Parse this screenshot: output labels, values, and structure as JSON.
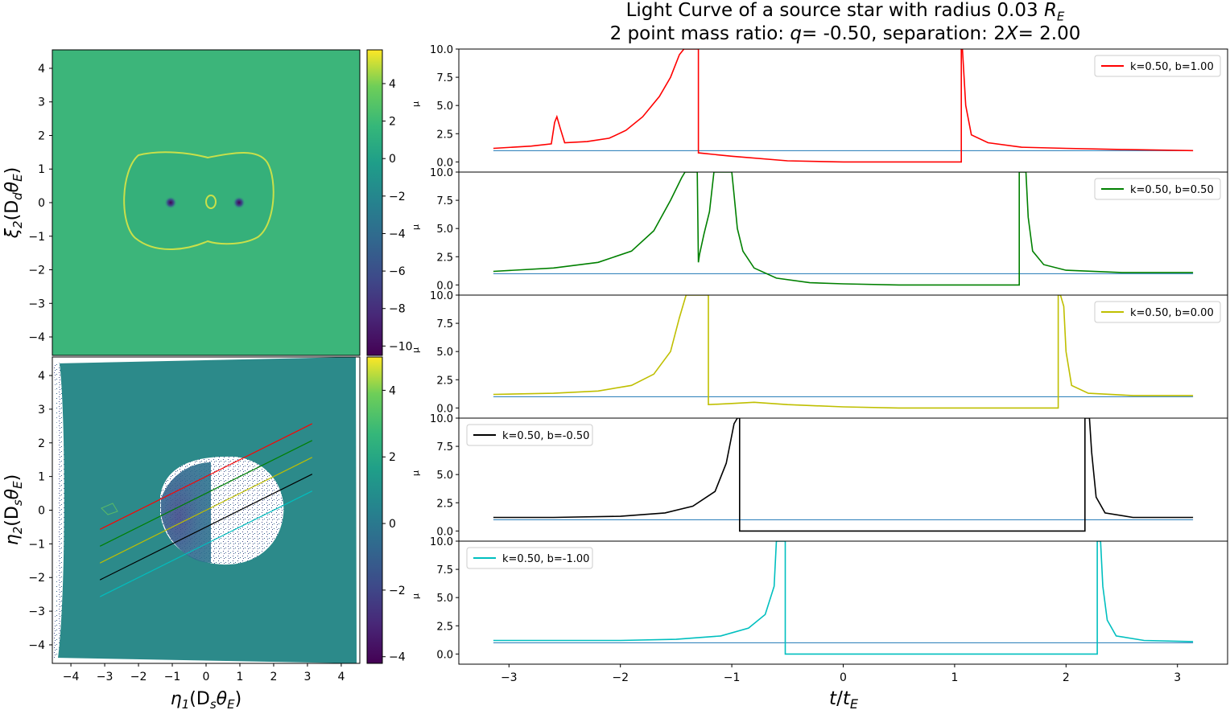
{
  "title": {
    "line1_text": "Light Curve of a source star with radius 0.03",
    "line1_symbol": "R",
    "line1_sub": "E",
    "line2_prefix": "2 point mass ratio: ",
    "q_symbol": "q",
    "q_value": "= -0.50",
    "sep_label": ", separation: 2",
    "x_symbol": "X",
    "x_value": "= 2.00"
  },
  "left_panels": {
    "top": {
      "ylabel_symbol": "ξ",
      "ylabel_sub": "2",
      "ylabel_rest": "(D",
      "ylabel_sub2": "d",
      "ylabel_tail": "θ",
      "ylabel_sub3": "E",
      "yticks": [
        "4",
        "3",
        "2",
        "1",
        "0",
        "−1",
        "−2",
        "−3",
        "−4"
      ],
      "colorbar_ticks": [
        "4",
        "2",
        "0",
        "−2",
        "−4",
        "−6",
        "−8",
        "−10"
      ],
      "colorbar_range": [
        -10.5,
        5.8
      ]
    },
    "bottom": {
      "ylabel_symbol": "η",
      "ylabel_sub": "2",
      "ylabel_rest": "(D",
      "ylabel_sub2": "s",
      "ylabel_tail": "θ",
      "ylabel_sub3": "E",
      "xlabel_symbol": "η",
      "xlabel_sub": "1",
      "xlabel_rest": "(D",
      "xlabel_sub2": "s",
      "xlabel_tail": "θ",
      "xlabel_sub3": "E",
      "yticks": [
        "4",
        "3",
        "2",
        "1",
        "0",
        "−1",
        "−2",
        "−3",
        "−4"
      ],
      "xticks": [
        "−4",
        "−3",
        "−2",
        "−1",
        "0",
        "1",
        "2",
        "3",
        "4"
      ],
      "colorbar_ticks": [
        "4",
        "2",
        "0",
        "−2",
        "−4"
      ],
      "colorbar_range": [
        -4.2,
        5.0
      ]
    },
    "track_lines": [
      {
        "color": "#ff0000",
        "b": 1.0
      },
      {
        "color": "#008000",
        "b": 0.5
      },
      {
        "color": "#bfbf00",
        "b": 0.0
      },
      {
        "color": "#000000",
        "b": -0.5
      },
      {
        "color": "#00bfbf",
        "b": -1.0
      }
    ],
    "track_slope": 0.5,
    "track_x_range": [
      -3.14,
      3.14
    ]
  },
  "right_panels": {
    "xlabel_main": "t",
    "xlabel_sub": "E",
    "xticks": [
      "−3",
      "−2",
      "−1",
      "0",
      "1",
      "2",
      "3"
    ],
    "ylabel": "μ",
    "yticks": [
      "10.0",
      "7.5",
      "5.0",
      "2.5",
      "0.0"
    ],
    "xlim": [
      -3.45,
      3.45
    ],
    "ylim": [
      -0.9,
      10.0
    ],
    "baseline_color": "#1f77b4"
  },
  "chart_data": [
    {
      "type": "line",
      "title": "Light Curve of a source star with radius 0.03 R_E",
      "xlabel": "t/t_E",
      "ylabel": "μ",
      "ylim": [
        -0.9,
        10.0
      ],
      "xlim": [
        -3.45,
        3.45
      ],
      "legend_position": "top-right",
      "series": [
        {
          "name": "k=0.50, b=1.00",
          "color": "#ff0000",
          "x": [
            -3.14,
            -2.8,
            -2.62,
            -2.59,
            -2.57,
            -2.54,
            -2.5,
            -2.3,
            -2.1,
            -1.95,
            -1.8,
            -1.65,
            -1.55,
            -1.47,
            -1.43,
            -1.4,
            -1.3,
            -1.3,
            -1.0,
            -0.5,
            0.0,
            0.5,
            1.06,
            1.06,
            1.07,
            1.1,
            1.15,
            1.3,
            1.6,
            2.0,
            2.5,
            3.14
          ],
          "y": [
            1.2,
            1.4,
            1.6,
            3.5,
            4.0,
            3.0,
            1.7,
            1.8,
            2.1,
            2.8,
            4.0,
            5.8,
            7.5,
            9.5,
            10.0,
            10.0,
            10.0,
            0.8,
            0.5,
            0.1,
            0.0,
            0.0,
            0.0,
            10.0,
            10.0,
            5.0,
            2.4,
            1.7,
            1.3,
            1.2,
            1.1,
            1.0
          ]
        }
      ]
    },
    {
      "type": "line",
      "xlabel": "t/t_E",
      "ylabel": "μ",
      "ylim": [
        -0.9,
        10.0
      ],
      "xlim": [
        -3.45,
        3.45
      ],
      "legend_position": "top-right",
      "series": [
        {
          "name": "k=0.50, b=0.50",
          "color": "#008000",
          "x": [
            -3.14,
            -2.6,
            -2.2,
            -1.9,
            -1.7,
            -1.55,
            -1.45,
            -1.42,
            -1.41,
            -1.31,
            -1.3,
            -1.29,
            -1.25,
            -1.2,
            -1.16,
            -1.15,
            -1.0,
            -0.98,
            -0.95,
            -0.9,
            -0.8,
            -0.6,
            -0.3,
            0.0,
            0.5,
            1.0,
            1.58,
            1.58,
            1.6,
            1.64,
            1.66,
            1.7,
            1.8,
            2.0,
            2.5,
            3.14
          ],
          "y": [
            1.2,
            1.5,
            2.0,
            3.0,
            4.8,
            7.5,
            9.5,
            10.0,
            10.0,
            10.0,
            2.0,
            2.7,
            4.5,
            6.5,
            10.0,
            10.0,
            10.0,
            8.0,
            5.0,
            3.0,
            1.5,
            0.6,
            0.2,
            0.1,
            0.0,
            0.0,
            0.0,
            10.0,
            10.0,
            10.0,
            6.0,
            3.0,
            1.8,
            1.3,
            1.1,
            1.1
          ]
        }
      ]
    },
    {
      "type": "line",
      "xlabel": "t/t_E",
      "ylabel": "μ",
      "ylim": [
        -0.9,
        10.0
      ],
      "xlim": [
        -3.45,
        3.45
      ],
      "legend_position": "top-right",
      "series": [
        {
          "name": "k=0.50, b=0.00",
          "color": "#bfbf00",
          "x": [
            -3.14,
            -2.6,
            -2.2,
            -1.9,
            -1.7,
            -1.55,
            -1.47,
            -1.41,
            -1.21,
            -1.21,
            -1.0,
            -0.8,
            -0.5,
            0.0,
            0.5,
            1.0,
            1.93,
            1.93,
            1.95,
            1.98,
            2.0,
            2.05,
            2.2,
            2.6,
            3.14
          ],
          "y": [
            1.2,
            1.3,
            1.5,
            2.0,
            3.0,
            5.0,
            8.0,
            10.0,
            10.0,
            0.3,
            0.4,
            0.5,
            0.3,
            0.1,
            0.0,
            0.0,
            0.0,
            10.0,
            10.0,
            9.0,
            5.0,
            2.0,
            1.3,
            1.1,
            1.1
          ]
        }
      ]
    },
    {
      "type": "line",
      "xlabel": "t/t_E",
      "ylabel": "μ",
      "ylim": [
        -0.9,
        10.0
      ],
      "xlim": [
        -3.45,
        3.45
      ],
      "legend_position": "top-left",
      "series": [
        {
          "name": "k=0.50, b=-0.50",
          "color": "#000000",
          "x": [
            -3.14,
            -2.6,
            -2.0,
            -1.6,
            -1.35,
            -1.15,
            -1.05,
            -0.98,
            -0.95,
            -0.93,
            -0.93,
            -0.5,
            0.0,
            0.5,
            1.0,
            1.5,
            2.17,
            2.17,
            2.21,
            2.23,
            2.27,
            2.35,
            2.6,
            3.14
          ],
          "y": [
            1.2,
            1.2,
            1.3,
            1.6,
            2.2,
            3.5,
            6.0,
            9.5,
            10.0,
            10.0,
            0.0,
            0.0,
            0.0,
            0.0,
            0.0,
            0.0,
            0.0,
            10.0,
            10.0,
            7.0,
            3.0,
            1.6,
            1.2,
            1.2
          ]
        }
      ]
    },
    {
      "type": "line",
      "xlabel": "t/t_E",
      "ylabel": "μ",
      "ylim": [
        -0.9,
        10.0
      ],
      "xlim": [
        -3.45,
        3.45
      ],
      "legend_position": "top-left",
      "series": [
        {
          "name": "k=0.50, b=-1.00",
          "color": "#00bfbf",
          "x": [
            -3.14,
            -2.6,
            -2.0,
            -1.5,
            -1.1,
            -0.85,
            -0.7,
            -0.62,
            -0.6,
            -0.52,
            -0.52,
            0.0,
            0.5,
            1.0,
            1.5,
            2.28,
            2.28,
            2.31,
            2.33,
            2.37,
            2.45,
            2.7,
            3.14
          ],
          "y": [
            1.2,
            1.2,
            1.2,
            1.3,
            1.6,
            2.3,
            3.5,
            6.0,
            10.0,
            10.0,
            0.0,
            0.0,
            0.0,
            0.0,
            0.0,
            0.0,
            10.0,
            10.0,
            6.0,
            3.0,
            1.6,
            1.2,
            1.1
          ]
        }
      ]
    }
  ]
}
